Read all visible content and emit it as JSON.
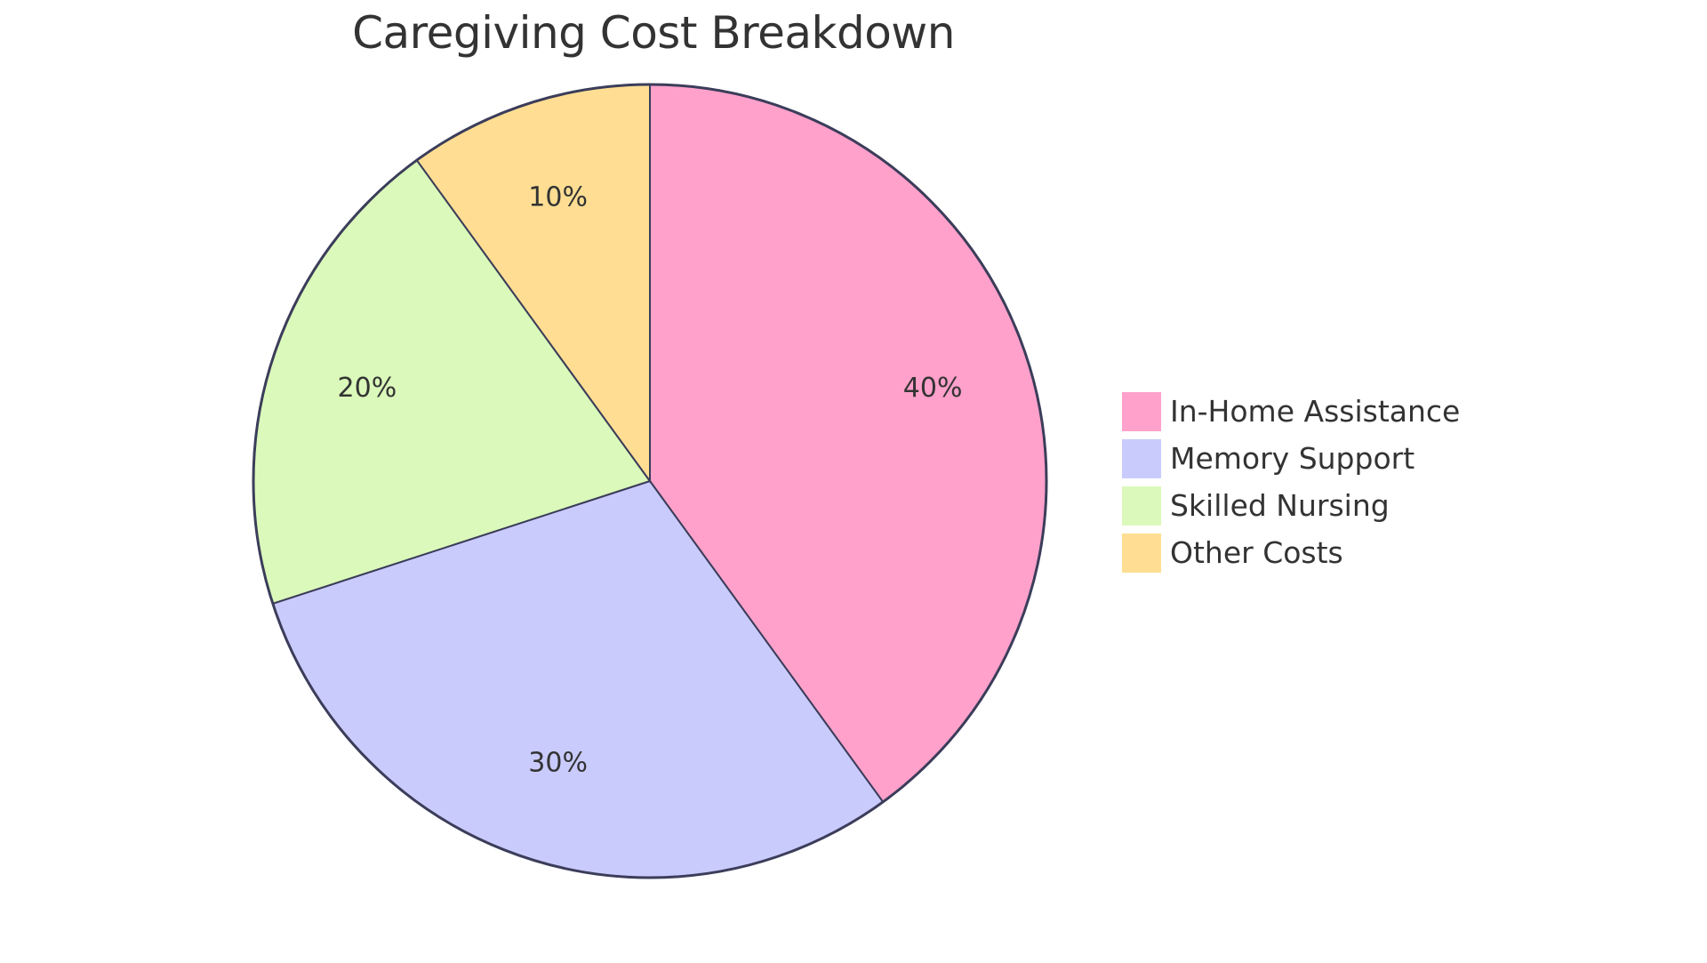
{
  "title": "Caregiving Cost Breakdown",
  "chart_data": {
    "type": "pie",
    "title": "Caregiving Cost Breakdown",
    "categories": [
      "In-Home Assistance",
      "Memory Support",
      "Skilled Nursing",
      "Other Costs"
    ],
    "values": [
      40,
      30,
      20,
      10
    ],
    "labels": [
      "40%",
      "30%",
      "20%",
      "10%"
    ],
    "colors": [
      "#FFA1CB",
      "#CACBFD",
      "#DBF9BA",
      "#FFDE93"
    ],
    "legend_position": "right",
    "stroke_color": "#3B3D5A"
  },
  "legend": {
    "items": [
      {
        "label": "In-Home Assistance",
        "color": "#FFA1CB"
      },
      {
        "label": "Memory Support",
        "color": "#CACBFD"
      },
      {
        "label": "Skilled Nursing",
        "color": "#DBF9BA"
      },
      {
        "label": "Other Costs",
        "color": "#FFDE93"
      }
    ]
  }
}
